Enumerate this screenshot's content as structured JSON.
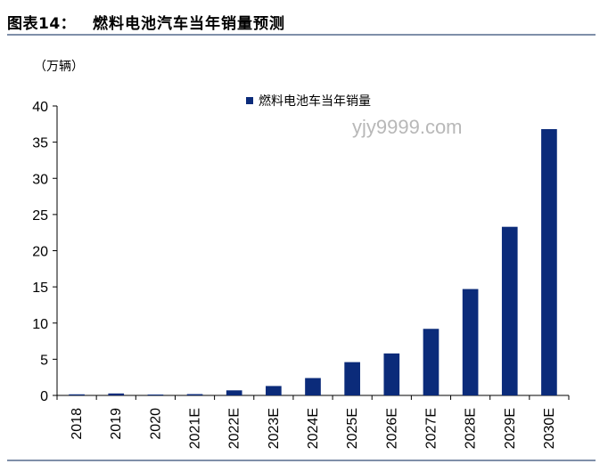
{
  "header": {
    "label": "图表14：",
    "title": "燃料电池汽车当年销量预测"
  },
  "unit": "（万辆）",
  "watermark": "yjy9999.com",
  "colors": {
    "bar": "#0b2b7a",
    "rule": "#7f8fa9",
    "axis": "#000000"
  },
  "chart_data": {
    "type": "bar",
    "title": "燃料电池汽车当年销量预测",
    "xlabel": "",
    "ylabel": "（万辆）",
    "ylim": [
      0,
      40
    ],
    "yticks": [
      0,
      5,
      10,
      15,
      20,
      25,
      30,
      35,
      40
    ],
    "grid": false,
    "legend_position": "top",
    "categories": [
      "2018",
      "2019",
      "2020",
      "2021E",
      "2022E",
      "2023E",
      "2024E",
      "2025E",
      "2026E",
      "2027E",
      "2028E",
      "2029E",
      "2030E"
    ],
    "series": [
      {
        "name": "燃料电池车当年销量",
        "values": [
          0.15,
          0.27,
          0.12,
          0.18,
          0.7,
          1.3,
          2.4,
          4.6,
          5.8,
          9.2,
          14.7,
          23.3,
          36.8
        ]
      }
    ]
  }
}
